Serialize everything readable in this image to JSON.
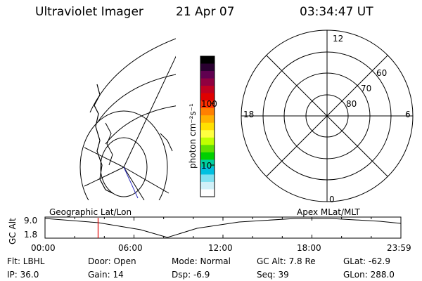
{
  "header": {
    "instrument": "Ultraviolet Imager",
    "date": "21 Apr 07",
    "time": "03:34:47 UT"
  },
  "colorbar": {
    "unit_label": "photon cm⁻²s⁻¹",
    "ticks": [
      "100",
      "10"
    ],
    "colors": [
      "#000000",
      "#2a0030",
      "#600050",
      "#900040",
      "#c00020",
      "#e00000",
      "#ff3000",
      "#ff8000",
      "#ffb000",
      "#ffe000",
      "#ffff40",
      "#c0ff00",
      "#60e000",
      "#00d000",
      "#00d0a0",
      "#00c0e0",
      "#80e0f0",
      "#d0f0f8",
      "#ffffff"
    ]
  },
  "left_map": {
    "label": "Geographic Lat/Lon"
  },
  "right_map": {
    "label": "Apex MLat/MLT",
    "mlt_labels": {
      "top": "12",
      "left": "18",
      "right": "6",
      "bottom": "0"
    },
    "lat_labels": [
      "60",
      "70",
      "80"
    ]
  },
  "altitude_panel": {
    "ylabel": "GC Alt",
    "y_ticks": [
      "9.0",
      "1.8"
    ],
    "x_ticks": [
      "00:00",
      "06:00",
      "12:00",
      "18:00",
      "23:59"
    ],
    "current_marker_hours": 3.58,
    "colors": {
      "marker": "#e00000"
    }
  },
  "status": {
    "filter": "Flt: LBHL",
    "ip": "IP: 36.0",
    "door": "Door: Open",
    "gain": "Gain: 14",
    "mode": "Mode: Normal",
    "dsp": "Dsp:    -6.9",
    "gc_alt": "GC Alt: 7.8 Re",
    "seq": "Seq: 39",
    "glat": "GLat:  -62.9",
    "glon": "GLon: 288.0"
  }
}
